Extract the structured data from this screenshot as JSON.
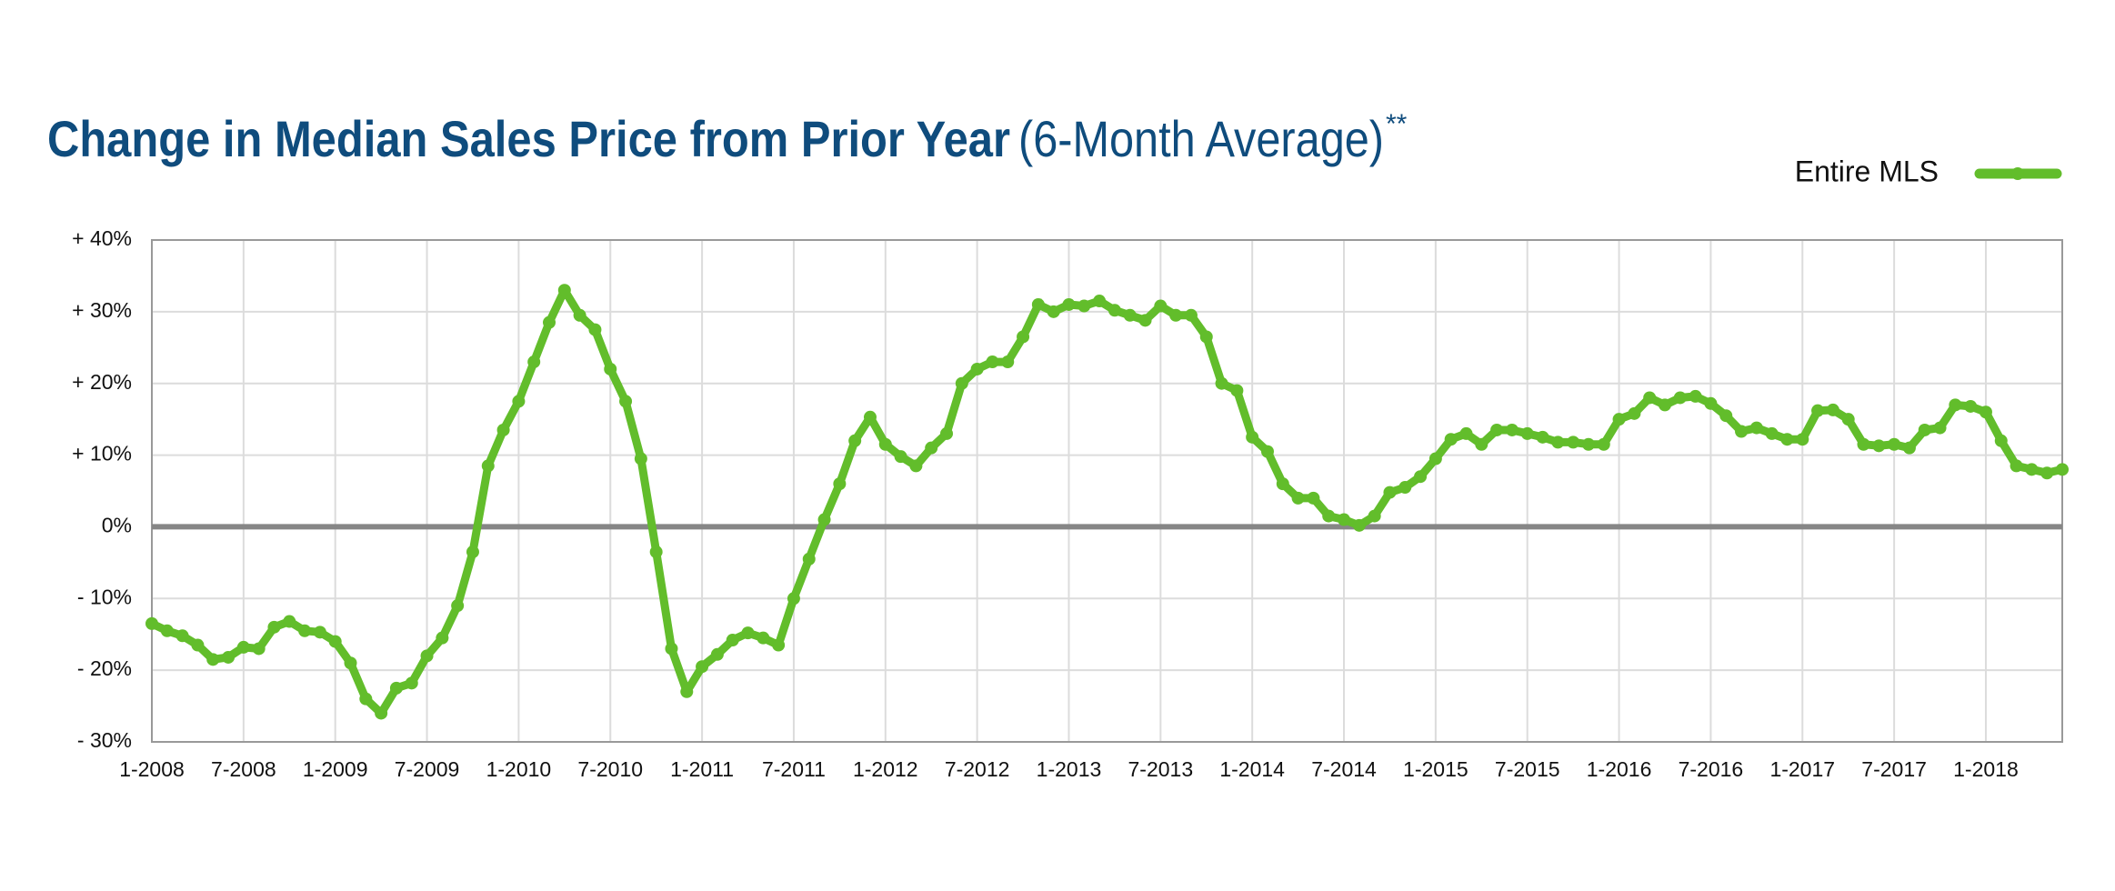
{
  "chart_data": {
    "type": "line",
    "title": "Change in Median Sales Price from Prior Year",
    "subtitle": "(6-Month Average)",
    "title_marker": "**",
    "categories": [
      "1-2008",
      null,
      null,
      null,
      null,
      null,
      "7-2008",
      null,
      null,
      null,
      null,
      null,
      "1-2009",
      null,
      null,
      null,
      null,
      null,
      "7-2009",
      null,
      null,
      null,
      null,
      null,
      "1-2010",
      null,
      null,
      null,
      null,
      null,
      "7-2010",
      null,
      null,
      null,
      null,
      null,
      "1-2011",
      null,
      null,
      null,
      null,
      null,
      "7-2011",
      null,
      null,
      null,
      null,
      null,
      "1-2012",
      null,
      null,
      null,
      null,
      null,
      "7-2012",
      null,
      null,
      null,
      null,
      null,
      "1-2013",
      null,
      null,
      null,
      null,
      null,
      "7-2013",
      null,
      null,
      null,
      null,
      null,
      "1-2014",
      null,
      null,
      null,
      null,
      null,
      "7-2014",
      null,
      null,
      null,
      null,
      null,
      "1-2015",
      null,
      null,
      null,
      null,
      null,
      "7-2015",
      null,
      null,
      null,
      null,
      null,
      "1-2016",
      null,
      null,
      null,
      null,
      null,
      "7-2016",
      null,
      null,
      null,
      null,
      null,
      "1-2017",
      null,
      null,
      null,
      null,
      null,
      "7-2017",
      null,
      null,
      null,
      null,
      null,
      "1-2018",
      null,
      null,
      null,
      null,
      null
    ],
    "series": [
      {
        "name": "Entire MLS",
        "color": "#62bd2b",
        "values": [
          -13.5,
          -14.5,
          -15.2,
          -16.5,
          -18.5,
          -18.2,
          -16.8,
          -17.0,
          -14.0,
          -13.2,
          -14.5,
          -14.7,
          -16.0,
          -19.0,
          -24.0,
          -26.0,
          -22.5,
          -21.8,
          -18.0,
          -15.5,
          -11.0,
          -3.5,
          8.5,
          13.5,
          17.5,
          23.0,
          28.5,
          33.0,
          29.5,
          27.5,
          22.0,
          17.5,
          9.5,
          -3.5,
          -17.0,
          -23.0,
          -19.5,
          -17.8,
          -15.8,
          -14.8,
          -15.5,
          -16.5,
          -10.0,
          -4.5,
          1.0,
          6.0,
          12.0,
          15.3,
          11.5,
          9.8,
          8.5,
          11.0,
          13.0,
          20.0,
          22.0,
          23.0,
          23.0,
          26.5,
          31.0,
          30.0,
          31.0,
          30.8,
          31.5,
          30.2,
          29.5,
          28.8,
          30.8,
          29.5,
          29.5,
          26.5,
          20.0,
          19.0,
          12.5,
          10.5,
          6.0,
          4.0,
          4.0,
          1.5,
          1.0,
          0.2,
          1.5,
          4.8,
          5.5,
          7.0,
          9.5,
          12.2,
          13.0,
          11.5,
          13.5,
          13.5,
          13.0,
          12.5,
          11.8,
          11.8,
          11.5,
          11.5,
          15.0,
          15.8,
          18.0,
          17.0,
          18.0,
          18.2,
          17.2,
          15.5,
          13.3,
          13.8,
          13.0,
          12.2,
          12.2,
          16.2,
          16.3,
          15.0,
          11.5,
          11.3,
          11.5,
          11.0,
          13.5,
          13.8,
          17.0,
          16.8,
          16.0,
          12.0,
          8.5,
          8.0,
          7.5,
          8.0
        ]
      }
    ],
    "ylim": [
      -30,
      40
    ],
    "yticks": [
      {
        "value": -30,
        "label": "- 30%"
      },
      {
        "value": -20,
        "label": "- 20%"
      },
      {
        "value": -10,
        "label": "- 10%"
      },
      {
        "value": 0,
        "label": "0%"
      },
      {
        "value": 10,
        "label": "+ 10%"
      },
      {
        "value": 20,
        "label": "+ 20%"
      },
      {
        "value": 30,
        "label": "+ 30%"
      },
      {
        "value": 40,
        "label": "+ 40%"
      }
    ],
    "grid": true,
    "zero_line": true,
    "legend": "top-right"
  }
}
